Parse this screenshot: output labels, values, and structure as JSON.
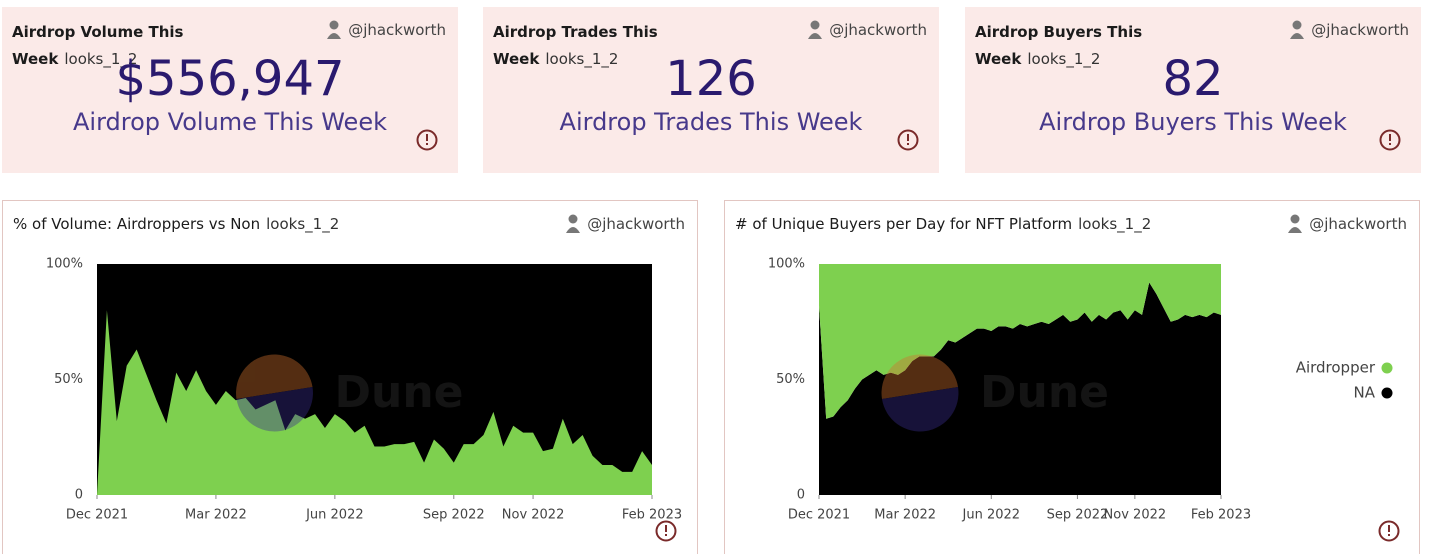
{
  "counters": [
    {
      "title": "Airdrop Volume This Week",
      "tag": "looks_1_2",
      "author": "@jhackworth",
      "value": "$556,947",
      "subtitle": "Airdrop Volume This Week"
    },
    {
      "title": "Airdrop Trades This Week",
      "tag": "looks_1_2",
      "author": "@jhackworth",
      "value": "126",
      "subtitle": "Airdrop Trades This Week"
    },
    {
      "title": "Airdrop Buyers This Week",
      "tag": "looks_1_2",
      "author": "@jhackworth",
      "value": "82",
      "subtitle": "Airdrop Buyers This Week"
    }
  ],
  "chart_data": [
    {
      "type": "area",
      "title": "% of Volume: Airdroppers vs Non",
      "tag": "looks_1_2",
      "author": "@jhackworth",
      "watermark": "Dune",
      "x": [
        0,
        0.25,
        0.5,
        0.75,
        1,
        1.25,
        1.5,
        1.75,
        2,
        2.25,
        2.5,
        2.75,
        3,
        3.25,
        3.5,
        3.75,
        4,
        4.25,
        4.5,
        4.75,
        5,
        5.25,
        5.5,
        5.75,
        6,
        6.25,
        6.5,
        6.75,
        7,
        7.25,
        7.5,
        7.75,
        8,
        8.25,
        8.5,
        8.75,
        9,
        9.25,
        9.5,
        9.75,
        10,
        10.25,
        10.5,
        10.75,
        11,
        11.25,
        11.5,
        11.75,
        12,
        12.25,
        12.5,
        12.75,
        13,
        13.25,
        13.5,
        13.75,
        14
      ],
      "values": [
        0,
        80,
        32,
        56,
        63,
        52,
        41,
        31,
        53,
        45,
        54,
        45,
        39,
        45,
        41,
        42,
        37,
        39,
        41,
        28,
        35,
        33,
        35,
        29,
        35,
        32,
        27,
        30,
        21,
        21,
        22,
        22,
        23,
        14,
        24,
        20,
        14,
        22,
        22,
        26,
        36,
        21,
        30,
        27,
        27,
        19,
        20,
        33,
        22,
        26,
        17,
        13,
        13,
        10,
        10,
        19,
        13
      ],
      "color": "#7ed04f",
      "plot_background": "#000000",
      "xlim": [
        0,
        14
      ],
      "xticks": [
        {
          "value": 0,
          "label": "Dec 2021"
        },
        {
          "value": 3,
          "label": "Mar 2022"
        },
        {
          "value": 6,
          "label": "Jun 2022"
        },
        {
          "value": 9,
          "label": "Sep 2022"
        },
        {
          "value": 11,
          "label": "Nov 2022"
        },
        {
          "value": 14,
          "label": "Feb 2023"
        }
      ],
      "ylim": [
        0,
        100
      ],
      "yticks": [
        0,
        {
          "value": 50,
          "label": "50%"
        },
        {
          "value": 100,
          "label": "100%"
        }
      ],
      "grid": false
    },
    {
      "type": "stacked_area",
      "title": "# of Unique Buyers per Day for NFT Platform",
      "tag": "looks_1_2",
      "author": "@jhackworth",
      "watermark": "Dune",
      "legend": "right",
      "x": [
        0,
        0.25,
        0.5,
        0.75,
        1,
        1.25,
        1.5,
        1.75,
        2,
        2.25,
        2.5,
        2.75,
        3,
        3.25,
        3.5,
        3.75,
        4,
        4.25,
        4.5,
        4.75,
        5,
        5.25,
        5.5,
        5.75,
        6,
        6.25,
        6.5,
        6.75,
        7,
        7.25,
        7.5,
        7.75,
        8,
        8.25,
        8.5,
        8.75,
        9,
        9.25,
        9.5,
        9.75,
        10,
        10.25,
        10.5,
        10.75,
        11,
        11.25,
        11.5,
        11.75,
        12,
        12.25,
        12.5,
        12.75,
        13,
        13.25,
        13.5,
        13.75,
        14
      ],
      "series": [
        {
          "name": "NA",
          "color": "#000000",
          "values": [
            82,
            33,
            34,
            38,
            41,
            46,
            50,
            52,
            54,
            52,
            53,
            52,
            54,
            58,
            60,
            60,
            60,
            63,
            67,
            66,
            68,
            70,
            72,
            72,
            71,
            73,
            73,
            72,
            74,
            73,
            74,
            75,
            74,
            76,
            78,
            75,
            76,
            79,
            75,
            78,
            76,
            79,
            80,
            76,
            80,
            78,
            92,
            87,
            81,
            75,
            76,
            78,
            77,
            78,
            77,
            79,
            78
          ]
        },
        {
          "name": "Airdropper",
          "color": "#7ed04f",
          "values": [
            18,
            67,
            66,
            62,
            59,
            54,
            50,
            48,
            46,
            48,
            47,
            48,
            46,
            42,
            40,
            40,
            40,
            37,
            33,
            34,
            32,
            30,
            28,
            28,
            29,
            27,
            27,
            28,
            26,
            27,
            26,
            25,
            26,
            24,
            22,
            25,
            24,
            21,
            25,
            22,
            24,
            21,
            20,
            24,
            20,
            22,
            8,
            13,
            19,
            25,
            24,
            22,
            23,
            22,
            23,
            21,
            22
          ]
        }
      ],
      "xlim": [
        0,
        14
      ],
      "xticks": [
        {
          "value": 0,
          "label": "Dec 2021"
        },
        {
          "value": 3,
          "label": "Mar 2022"
        },
        {
          "value": 6,
          "label": "Jun 2022"
        },
        {
          "value": 9,
          "label": "Sep 2022"
        },
        {
          "value": 11,
          "label": "Nov 2022"
        },
        {
          "value": 14,
          "label": "Feb 2023"
        }
      ],
      "ylim": [
        0,
        100
      ],
      "yticks": [
        0,
        {
          "value": 50,
          "label": "50%"
        },
        {
          "value": 100,
          "label": "100%"
        }
      ],
      "grid": false
    }
  ]
}
